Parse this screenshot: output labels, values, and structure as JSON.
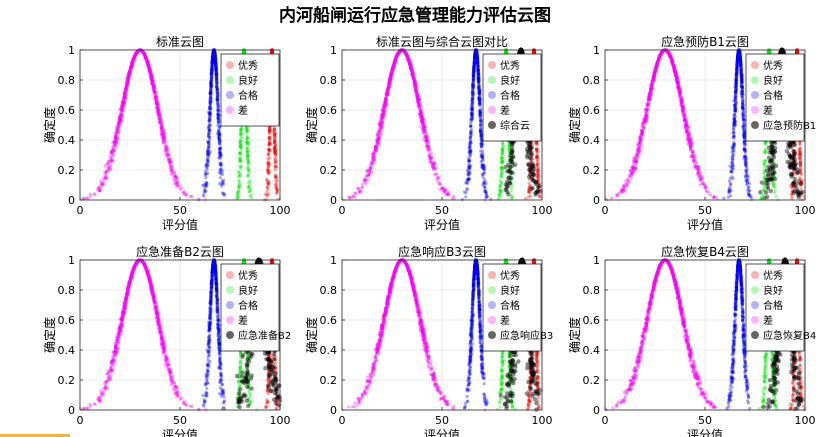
{
  "figure": {
    "title": "内河船闸运行应急管理能力评估云图"
  },
  "chart_data": {
    "type": "scatter",
    "subtype": "cloud-model",
    "suptitle": "内河船闸运行应急管理能力评估云图",
    "xlabel": "评分值",
    "ylabel": "确定度",
    "xlim": [
      0,
      100
    ],
    "ylim": [
      0,
      1
    ],
    "xticks": [
      0,
      50,
      100
    ],
    "yticks": [
      0,
      0.2,
      0.4,
      0.6,
      0.8,
      1
    ],
    "grid": true,
    "legend_location": "top-right",
    "standard_clouds": [
      {
        "name": "优秀",
        "color": "#ff0000",
        "Ex": 96,
        "En": 1.0,
        "He": 0.15
      },
      {
        "name": "良好",
        "color": "#00ee00",
        "Ex": 82,
        "En": 1.2,
        "He": 0.15
      },
      {
        "name": "合格",
        "color": "#0000ff",
        "Ex": 67,
        "En": 2.0,
        "He": 0.2
      },
      {
        "name": "差",
        "color": "#ff00ff",
        "Ex": 30,
        "En": 9.0,
        "He": 0.35
      }
    ],
    "subplots": [
      {
        "title": "标准云图",
        "legend": [
          "优秀",
          "良好",
          "合格",
          "差"
        ],
        "comprehensive": null
      },
      {
        "title": "标准云图与综合云图对比",
        "legend": [
          "优秀",
          "良好",
          "合格",
          "差",
          "综合云"
        ],
        "comprehensive": {
          "name": "综合云",
          "color": "#000000",
          "Ex": 89.5,
          "En": 3.0,
          "He": 0.6
        }
      },
      {
        "title": "应急预防B1云图",
        "legend": [
          "优秀",
          "良好",
          "合格",
          "差",
          "应急预防B1"
        ],
        "comprehensive": {
          "name": "应急预防B1",
          "color": "#000000",
          "Ex": 88.5,
          "En": 3.2,
          "He": 0.7
        }
      },
      {
        "title": "应急准备B2云图",
        "legend": [
          "优秀",
          "良好",
          "合格",
          "差",
          "应急准备B2"
        ],
        "comprehensive": {
          "name": "应急准备B2",
          "color": "#000000",
          "Ex": 89.5,
          "En": 3.8,
          "He": 0.8
        }
      },
      {
        "title": "应急响应B3云图",
        "legend": [
          "优秀",
          "良好",
          "合格",
          "差",
          "应急响应B3"
        ],
        "comprehensive": {
          "name": "应急响应B3",
          "color": "#000000",
          "Ex": 90,
          "En": 3.2,
          "He": 0.6
        }
      },
      {
        "title": "应急恢复B4云图",
        "legend": [
          "优秀",
          "良好",
          "合格",
          "差",
          "应急恢复B4"
        ],
        "comprehensive": {
          "name": "应急恢复B4",
          "color": "#000000",
          "Ex": 90,
          "En": 3.0,
          "He": 0.6
        }
      }
    ]
  }
}
